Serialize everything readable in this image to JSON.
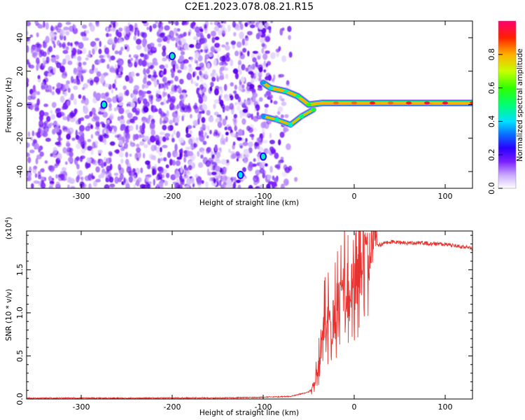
{
  "title": "C2E1.2023.078.08.21.R15",
  "colors": {
    "snr_line": "#e8322f",
    "frame": "#000000"
  },
  "chart_data": [
    {
      "type": "heatmap",
      "xlabel": "Height of straight line (km)",
      "ylabel": "Frequency (Hz)",
      "xlim": [
        -360,
        130
      ],
      "ylim": [
        -50,
        50
      ],
      "x_ticks": [
        -300,
        -200,
        -100,
        0,
        100
      ],
      "y_ticks": [
        -40,
        -20,
        0,
        20,
        40
      ],
      "colorbar": {
        "label": "Normalized spectral amplitude",
        "range": [
          0.0,
          1.0
        ],
        "ticks": [
          "0.0",
          "0.2",
          "0.4",
          "0.6",
          "0.8"
        ],
        "tick_values": [
          0.0,
          0.2,
          0.4,
          0.6,
          0.8
        ]
      },
      "noise_region": {
        "x": [
          -360,
          -75
        ],
        "y": [
          -50,
          50
        ],
        "amplitude": 0.12
      },
      "signal_track": [
        {
          "x": -100,
          "y": 13,
          "v": 0.35
        },
        {
          "x": -92,
          "y": 10,
          "v": 0.4
        },
        {
          "x": -75,
          "y": 8,
          "v": 0.45
        },
        {
          "x": -62,
          "y": 5,
          "v": 0.5
        },
        {
          "x": -50,
          "y": 0,
          "v": 0.6
        },
        {
          "x": -35,
          "y": 1,
          "v": 0.8
        },
        {
          "x": -20,
          "y": 1,
          "v": 0.85
        },
        {
          "x": 0,
          "y": 1,
          "v": 0.85
        },
        {
          "x": 20,
          "y": 1,
          "v": 0.9
        },
        {
          "x": 40,
          "y": 1,
          "v": 0.85
        },
        {
          "x": 60,
          "y": 1,
          "v": 0.9
        },
        {
          "x": 80,
          "y": 1,
          "v": 0.95
        },
        {
          "x": 100,
          "y": 1,
          "v": 0.95
        },
        {
          "x": 130,
          "y": 1,
          "v": 0.9
        }
      ],
      "lower_branch": [
        {
          "x": -100,
          "y": -7,
          "v": 0.35
        },
        {
          "x": -85,
          "y": -9,
          "v": 0.45
        },
        {
          "x": -70,
          "y": -12,
          "v": 0.45
        },
        {
          "x": -58,
          "y": -7,
          "v": 0.5
        },
        {
          "x": -45,
          "y": -3,
          "v": 0.55
        }
      ],
      "blobs": [
        {
          "x": -275,
          "y": 0,
          "v": 0.45
        },
        {
          "x": -200,
          "y": 29,
          "v": 0.45
        },
        {
          "x": -100,
          "y": -31,
          "v": 0.45
        },
        {
          "x": -125,
          "y": -42,
          "v": 0.4
        }
      ]
    },
    {
      "type": "line",
      "xlabel": "Height of straight line (km)",
      "ylabel": "SNR (10 * v/v)",
      "scale_note": "(x10",
      "scale_exp": "4",
      "scale_close": ")",
      "xlim": [
        -360,
        130
      ],
      "ylim": [
        0.0,
        1.95
      ],
      "x_ticks": [
        -300,
        -200,
        -100,
        0,
        100
      ],
      "y_ticks": [
        "0.0",
        "0.5",
        "1.0",
        "1.5"
      ],
      "y_tick_values": [
        0.0,
        0.5,
        1.0,
        1.5
      ],
      "series": [
        {
          "x": [
            -360,
            -300,
            -250,
            -200,
            -150,
            -100,
            -70,
            -50,
            -45,
            -40,
            -35,
            -30,
            -25,
            -20,
            -15,
            -10,
            -5,
            0,
            5,
            10,
            15,
            20,
            25,
            30,
            35,
            40,
            50,
            60,
            70,
            80,
            90,
            100,
            110,
            120,
            130
          ],
          "values": [
            0.01,
            0.012,
            0.01,
            0.013,
            0.012,
            0.02,
            0.03,
            0.08,
            0.15,
            0.35,
            0.7,
            1.0,
            0.8,
            1.1,
            1.2,
            1.3,
            1.2,
            1.4,
            1.45,
            1.6,
            1.65,
            1.75,
            1.8,
            1.82,
            1.84,
            1.85,
            1.84,
            1.83,
            1.84,
            1.83,
            1.82,
            1.82,
            1.8,
            1.79,
            1.77
          ]
        }
      ]
    }
  ]
}
